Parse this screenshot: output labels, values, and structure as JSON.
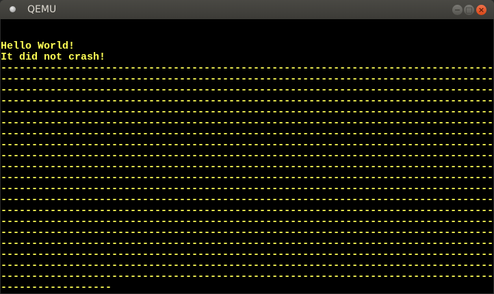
{
  "window": {
    "title": "QEMU",
    "minimize_icon": "minus-icon",
    "maximize_icon": "square-icon",
    "close_icon": "x-icon"
  },
  "screen": {
    "text_color": "#ffff55",
    "lines": [
      "",
      "",
      "Hello World!",
      "It did not crash!",
      "--------------------------------------------------------------------------------",
      "--------------------------------------------------------------------------------",
      "--------------------------------------------------------------------------------",
      "--------------------------------------------------------------------------------",
      "--------------------------------------------------------------------------------",
      "--------------------------------------------------------------------------------",
      "--------------------------------------------------------------------------------",
      "--------------------------------------------------------------------------------",
      "--------------------------------------------------------------------------------",
      "--------------------------------------------------------------------------------",
      "--------------------------------------------------------------------------------",
      "--------------------------------------------------------------------------------",
      "--------------------------------------------------------------------------------",
      "--------------------------------------------------------------------------------",
      "--------------------------------------------------------------------------------",
      "--------------------------------------------------------------------------------",
      "--------------------------------------------------------------------------------",
      "--------------------------------------------------------------------------------",
      "--------------------------------------------------------------------------------",
      "--------------------------------------------------------------------------------",
      "------------------"
    ]
  }
}
